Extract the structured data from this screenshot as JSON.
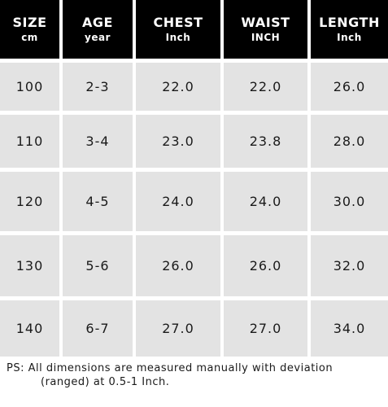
{
  "headers": [
    {
      "main": "SIZE",
      "sub": "cm"
    },
    {
      "main": "AGE",
      "sub": "year"
    },
    {
      "main": "CHEST",
      "sub": "Inch"
    },
    {
      "main": "WAIST",
      "sub": "INCH"
    },
    {
      "main": "LENGTH",
      "sub": "Inch"
    }
  ],
  "rows": [
    [
      "100",
      "2-3",
      "22.0",
      "22.0",
      "26.0"
    ],
    [
      "110",
      "3-4",
      "23.0",
      "23.8",
      "28.0"
    ],
    [
      "120",
      "4-5",
      "24.0",
      "24.0",
      "30.0"
    ],
    [
      "130",
      "5-6",
      "26.0",
      "26.0",
      "32.0"
    ],
    [
      "140",
      "6-7",
      "27.0",
      "27.0",
      "34.0"
    ]
  ],
  "note": {
    "line1": "PS:  All dimensions are measured manually with deviation",
    "line2": "(ranged) at 0.5-1 Inch."
  }
}
